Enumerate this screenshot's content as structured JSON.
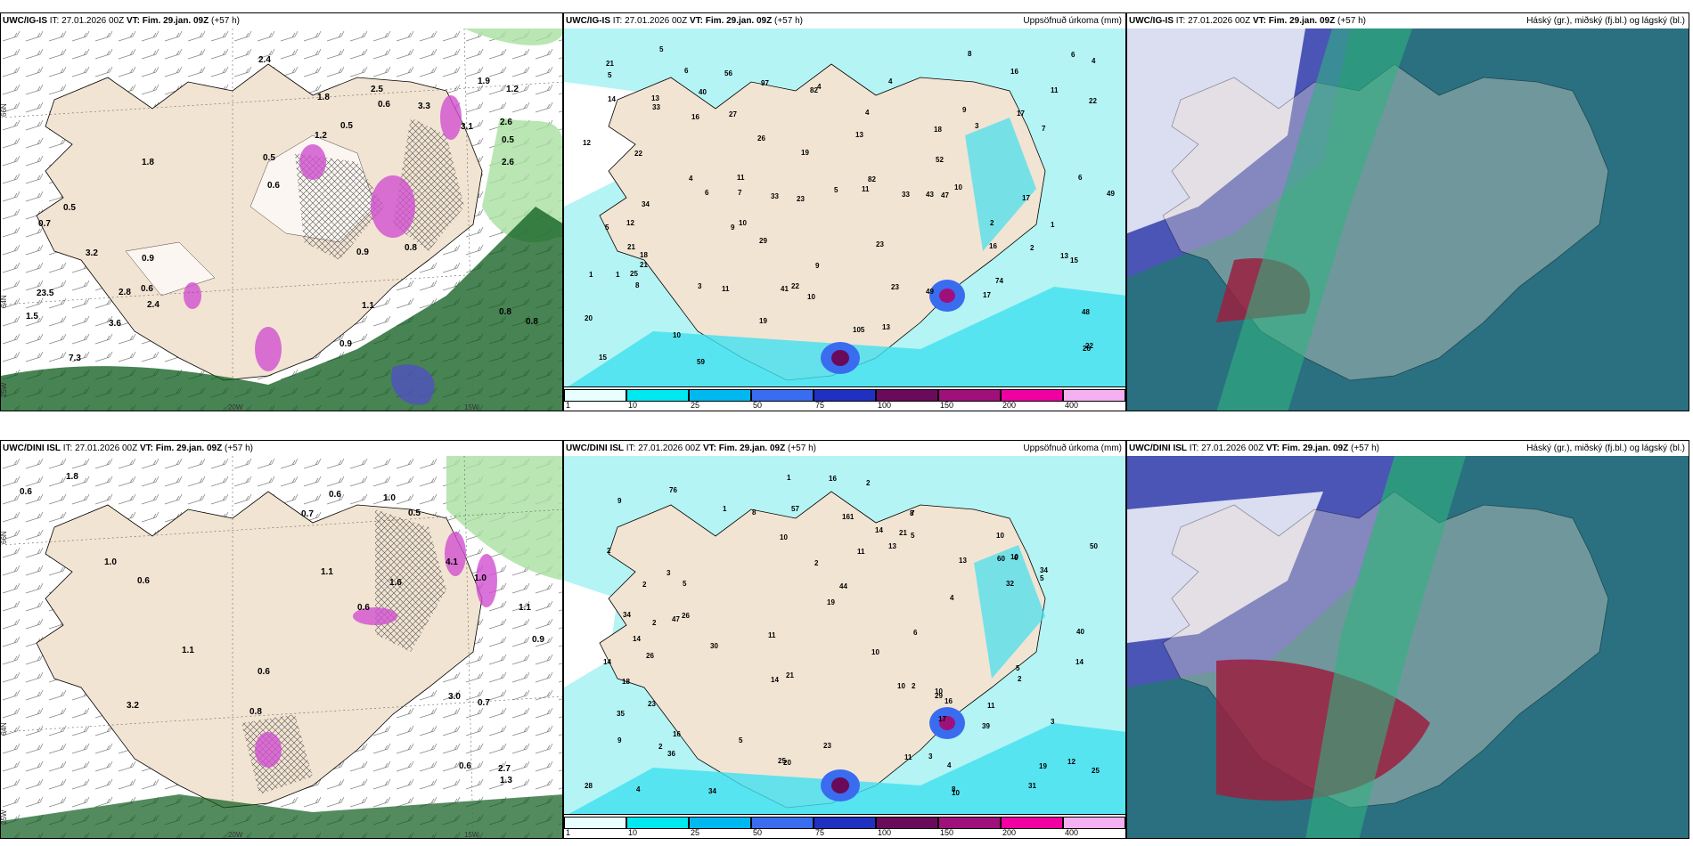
{
  "panels": {
    "p1": {
      "model": "UWC/IG-IS",
      "it": "IT: 27.01.2026 00Z",
      "vt": "VT: Fim. 29.jan. 09Z",
      "lead": "(+57 h)"
    },
    "p2": {
      "model": "UWC/IG-IS",
      "it": "IT: 27.01.2026 00Z",
      "vt": "VT: Fim. 29.jan. 09Z",
      "lead": "(+57 h)",
      "right": "Uppsöfnuð úrkoma (mm)"
    },
    "p3": {
      "model": "UWC/IG-IS",
      "it": "IT: 27.01.2026 00Z",
      "vt": "VT: Fim. 29.jan. 09Z",
      "lead": "(+57 h)",
      "right": "Háský (gr.), miðský (fj.bl.) og lágský (bl.)"
    },
    "p4": {
      "model": "UWC/DINI ISL",
      "it": "IT: 27.01.2026 00Z",
      "vt": "VT: Fim. 29.jan. 09Z",
      "lead": "(+57 h)"
    },
    "p5": {
      "model": "UWC/DINI ISL",
      "it": "IT: 27.01.2026 00Z",
      "vt": "VT: Fim. 29.jan. 09Z",
      "lead": "(+57 h)",
      "right": "Uppsöfnuð úrkoma (mm)"
    },
    "p6": {
      "model": "UWC/DINI ISL",
      "it": "IT: 27.01.2026 00Z",
      "vt": "VT: Fim. 29.jan. 09Z",
      "lead": "(+57 h)",
      "right": "Háský (gr.), miðský (fj.bl.) og lágský (bl.)"
    }
  },
  "axis_labels": {
    "lat66": "66N",
    "lat64": "64N",
    "lon20": "20W",
    "lon15": "15W",
    "lon25": "25W"
  },
  "colorbar": {
    "labels": [
      "1",
      "10",
      "25",
      "50",
      "75",
      "100",
      "150",
      "200",
      "400"
    ],
    "colors": [
      "#e8ffff",
      "#00e8f0",
      "#00b8f0",
      "#3a6cf0",
      "#2030c0",
      "#6a0a5a",
      "#a0107a",
      "#f000a0",
      "#f4b0f0"
    ]
  },
  "colors": {
    "land": "#f2e4d2",
    "sea": "#ffffff",
    "precip_light": "#b4f4f4",
    "precip_mid": "#40e0f0",
    "green_light": "#a8e0a0",
    "green_dark": "#0a5a1a",
    "violet": "#d050d0",
    "cloud_teal": "#2a7080",
    "cloud_blue": "#5050c0",
    "cloud_red": "#9a2040",
    "cloud_green": "#30b080"
  },
  "labels": {
    "p1": [
      "0.9",
      "0.7",
      "0.9",
      "0.8",
      "0.6",
      "0.5",
      "0.6",
      "0.5",
      "0.6",
      "2.4",
      "1.2",
      "2.8",
      "1.2",
      "7.3",
      "0.5",
      "3.3",
      "2.6",
      "3.1",
      "3.6",
      "0.8",
      "1.1",
      "3.2",
      "1.9",
      "1.8",
      "0.8",
      "2.5",
      "2.6",
      "1.5",
      "2.4",
      "23.5",
      "0.9",
      "1.8",
      "0.5"
    ],
    "p2": [
      "8",
      "4",
      "10",
      "6",
      "5",
      "3",
      "13",
      "4",
      "18",
      "33",
      "20",
      "18",
      "13",
      "23",
      "7",
      "2",
      "5",
      "11",
      "12",
      "9",
      "10",
      "17",
      "6",
      "9",
      "19",
      "21",
      "17",
      "48",
      "33",
      "40",
      "49",
      "59",
      "6",
      "16",
      "22",
      "7",
      "8",
      "13",
      "49",
      "21",
      "23",
      "26",
      "16",
      "74",
      "52",
      "82",
      "41",
      "12",
      "25",
      "105",
      "43",
      "13",
      "11",
      "22",
      "14",
      "17",
      "11",
      "1",
      "4",
      "1",
      "3",
      "6",
      "10",
      "4",
      "1",
      "4",
      "2",
      "5",
      "5",
      "11",
      "16",
      "10",
      "15",
      "9",
      "82",
      "33",
      "29",
      "34",
      "26",
      "56",
      "97",
      "22",
      "19",
      "23",
      "27",
      "21",
      "22",
      "15",
      "47"
    ],
    "p4": [
      "0.6",
      "0.7",
      "0.6",
      "0.7",
      "0.9",
      "0.8",
      "0.6",
      "0.5",
      "0.6",
      "1.3",
      "1.0",
      "1.1",
      "0.6",
      "1.1",
      "1.0",
      "4.1",
      "1.1",
      "3.2",
      "2.7",
      "1.6",
      "3.0",
      "0.6",
      "1.8",
      "1.0"
    ],
    "p5": [
      "10",
      "8",
      "10",
      "5",
      "3",
      "2",
      "2",
      "2",
      "6",
      "32",
      "34",
      "34",
      "10",
      "9",
      "4",
      "2",
      "2",
      "3",
      "5",
      "4",
      "5",
      "12",
      "3",
      "18",
      "23",
      "16",
      "21",
      "39",
      "35",
      "60",
      "76",
      "47",
      "50",
      "28",
      "6",
      "19",
      "11",
      "11",
      "8",
      "8",
      "14",
      "11",
      "16",
      "21",
      "30",
      "20",
      "14",
      "25",
      "57",
      "40",
      "161",
      "31",
      "19",
      "14",
      "9",
      "17",
      "14",
      "1",
      "4",
      "2",
      "2",
      "1",
      "10",
      "10",
      "13",
      "5",
      "5",
      "10",
      "16",
      "14",
      "13",
      "34",
      "26",
      "29",
      "23",
      "26",
      "25",
      "36",
      "44",
      "10",
      "11",
      "7",
      "2"
    ]
  }
}
